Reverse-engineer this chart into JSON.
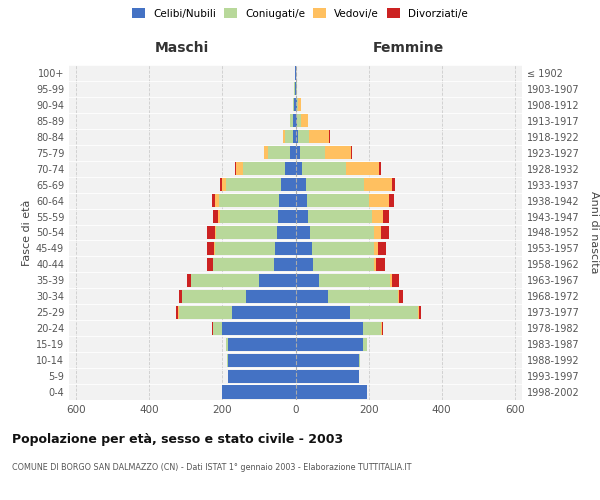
{
  "age_groups": [
    "0-4",
    "5-9",
    "10-14",
    "15-19",
    "20-24",
    "25-29",
    "30-34",
    "35-39",
    "40-44",
    "45-49",
    "50-54",
    "55-59",
    "60-64",
    "65-69",
    "70-74",
    "75-79",
    "80-84",
    "85-89",
    "90-94",
    "95-99",
    "100+"
  ],
  "birth_years": [
    "1998-2002",
    "1993-1997",
    "1988-1992",
    "1983-1987",
    "1978-1982",
    "1973-1977",
    "1968-1972",
    "1963-1967",
    "1958-1962",
    "1953-1957",
    "1948-1952",
    "1943-1947",
    "1938-1942",
    "1933-1937",
    "1928-1932",
    "1923-1927",
    "1918-1922",
    "1913-1917",
    "1908-1912",
    "1903-1907",
    "≤ 1902"
  ],
  "maschi_celibinubili": [
    200,
    185,
    185,
    185,
    200,
    175,
    135,
    100,
    60,
    55,
    52,
    48,
    45,
    40,
    30,
    15,
    8,
    6,
    3,
    2,
    1
  ],
  "maschi_coniugati": [
    0,
    0,
    2,
    5,
    25,
    145,
    175,
    185,
    165,
    165,
    165,
    160,
    165,
    150,
    115,
    60,
    20,
    8,
    3,
    1,
    0
  ],
  "maschi_vedovi": [
    0,
    0,
    0,
    0,
    2,
    3,
    2,
    2,
    2,
    3,
    3,
    5,
    10,
    12,
    18,
    12,
    5,
    2,
    1,
    0,
    0
  ],
  "maschi_divorziati": [
    0,
    0,
    0,
    0,
    2,
    5,
    8,
    10,
    15,
    18,
    22,
    12,
    8,
    5,
    2,
    0,
    0,
    0,
    0,
    0,
    0
  ],
  "femmine_celibinubili": [
    195,
    175,
    175,
    185,
    185,
    150,
    90,
    65,
    48,
    45,
    40,
    35,
    32,
    28,
    18,
    12,
    7,
    5,
    3,
    2,
    1
  ],
  "femmine_coniugate": [
    0,
    0,
    2,
    10,
    50,
    185,
    190,
    195,
    168,
    170,
    175,
    175,
    170,
    160,
    120,
    70,
    30,
    10,
    4,
    1,
    0
  ],
  "femmine_vedove": [
    0,
    0,
    0,
    0,
    2,
    3,
    3,
    3,
    5,
    10,
    18,
    30,
    55,
    75,
    90,
    70,
    55,
    20,
    8,
    2,
    0
  ],
  "femmine_divorziate": [
    0,
    0,
    0,
    0,
    2,
    5,
    12,
    20,
    25,
    22,
    22,
    15,
    12,
    8,
    5,
    2,
    2,
    0,
    0,
    0,
    0
  ],
  "color_celibinubili": "#4472c4",
  "color_coniugati": "#b8d89a",
  "color_vedovi": "#ffc060",
  "color_divorziati": "#cc2222",
  "xlim": 620,
  "title": "Popolazione per età, sesso e stato civile - 2003",
  "subtitle": "COMUNE DI BORGO SAN DALMAZZO (CN) - Dati ISTAT 1° gennaio 2003 - Elaborazione TUTTITALIA.IT",
  "ylabel_left": "Fasce di età",
  "ylabel_right": "Anni di nascita",
  "xlabel_maschi": "Maschi",
  "xlabel_femmine": "Femmine",
  "bg_color": "#f2f2f2"
}
